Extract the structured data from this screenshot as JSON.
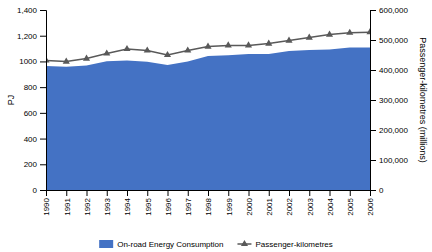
{
  "chart_data": {
    "type": "area",
    "x": [
      1990,
      1991,
      1992,
      1993,
      1994,
      1995,
      1996,
      1997,
      1998,
      1999,
      2000,
      2001,
      2002,
      2003,
      2004,
      2005,
      2006
    ],
    "xlim": [
      1990,
      2006
    ],
    "xticks": [
      1990,
      1991,
      1992,
      1993,
      1994,
      1995,
      1996,
      1997,
      1998,
      1999,
      2000,
      2001,
      2002,
      2003,
      2004,
      2005,
      2006
    ],
    "ylabel": "PJ",
    "y2label": "Passenger-kilometres (millions)",
    "ylim": [
      0,
      1400
    ],
    "yticks": [
      0,
      200,
      400,
      600,
      800,
      1000,
      {
        "value": 1200,
        "label": "1,200"
      },
      {
        "value": 1400,
        "label": "1,400"
      }
    ],
    "y2lim": [
      0,
      600000
    ],
    "y2ticks": [
      0,
      {
        "value": 100000,
        "label": "100,000"
      },
      {
        "value": 200000,
        "label": "200,000"
      },
      {
        "value": 300000,
        "label": "300,000"
      },
      {
        "value": 400000,
        "label": "400,000"
      },
      {
        "value": 500000,
        "label": "500,000"
      },
      {
        "value": 600000,
        "label": "600,000"
      }
    ],
    "legend": "bottom",
    "series": [
      {
        "name": "On-road Energy Consumption",
        "type": "area",
        "color": "#4472C4",
        "values": [
          965,
          958,
          968,
          1002,
          1008,
          998,
          972,
          1000,
          1042,
          1048,
          1058,
          1058,
          1082,
          1088,
          1092,
          1108,
          1108
        ]
      },
      {
        "name": "Passenger-kilometres",
        "type": "line",
        "axis": "y2",
        "color": "#595959",
        "marker": "triangle",
        "values": [
          432000,
          428000,
          438000,
          455000,
          470000,
          465000,
          450000,
          465000,
          478000,
          482000,
          482000,
          488000,
          498000,
          508000,
          518000,
          524000,
          526000
        ]
      }
    ]
  }
}
